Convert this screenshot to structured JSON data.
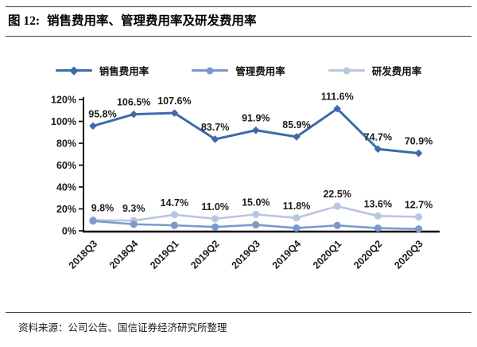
{
  "header": {
    "figure_label": "图 12:",
    "title": "销售费用率、管理费用率及研发费用率"
  },
  "footer": {
    "source": "资料来源：公司公告、国信证券经济研究所整理"
  },
  "colors": {
    "sales_line": "#3e6aa8",
    "admin_line": "#7b99cc",
    "rnd_line": "#b8c6e0",
    "axis": "#000000",
    "rule": "#3d3d3d"
  },
  "chart_data": {
    "type": "line",
    "title": "图 12: 销售费用率、管理费用率及研发费用率",
    "xlabel": "",
    "ylabel": "",
    "categories": [
      "2018Q3",
      "2018Q4",
      "2019Q1",
      "2019Q2",
      "2019Q3",
      "2019Q4",
      "2020Q1",
      "2020Q2",
      "2020Q3"
    ],
    "series": [
      {
        "key": "sales-expense-ratio",
        "name": "销售费用率",
        "color": "#3e6aa8",
        "marker": "diamond",
        "line_width": 3,
        "show_labels": true,
        "values": [
          95.8,
          106.5,
          107.6,
          83.7,
          91.9,
          85.9,
          111.6,
          74.7,
          70.9
        ],
        "labels": [
          "95.8%",
          "106.5%",
          "107.6%",
          "83.7%",
          "91.9%",
          "85.9%",
          "111.6%",
          "74.7%",
          "70.9%"
        ]
      },
      {
        "key": "admin-expense-ratio",
        "name": "管理费用率",
        "color": "#7b99cc",
        "marker": "circle",
        "line_width": 2.6,
        "show_labels": false,
        "values": [
          9.0,
          6.0,
          5.0,
          3.5,
          5.5,
          2.5,
          4.9,
          2.4,
          1.7
        ],
        "labels": []
      },
      {
        "key": "rnd-expense-ratio",
        "name": "研发费用率",
        "color": "#b8c6e0",
        "marker": "circle",
        "line_width": 2.6,
        "show_labels": true,
        "values": [
          9.8,
          9.3,
          14.7,
          11.0,
          15.0,
          11.8,
          22.5,
          13.6,
          12.7
        ],
        "labels": [
          "9.8%",
          "9.3%",
          "14.7%",
          "11.0%",
          "15.0%",
          "11.8%",
          "22.5%",
          "13.6%",
          "12.7%"
        ]
      }
    ],
    "ylim": [
      0,
      120
    ],
    "ytick_step": 20,
    "ytick_labels": [
      "0%",
      "20%",
      "40%",
      "60%",
      "80%",
      "100%",
      "120%"
    ],
    "grid": false,
    "legend_position": "top"
  }
}
